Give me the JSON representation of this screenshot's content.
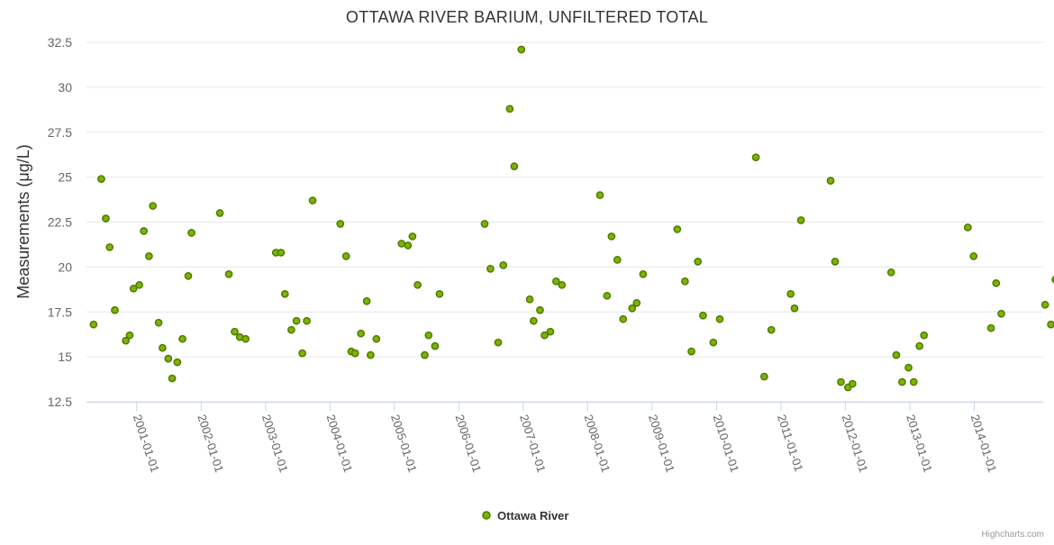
{
  "colors": {
    "point_fill": "#7cb500",
    "point_stroke": "#4f7a00",
    "grid": "#e6e6e6",
    "axis_text": "#666666"
  },
  "credits": "Highcharts.com",
  "chart_data": {
    "type": "scatter",
    "title": "OTTAWA RIVER BARIUM, UNFILTERED TOTAL",
    "ylabel": "Measurements (μg/L)",
    "xlabel": "",
    "ylim": [
      12.5,
      32.5
    ],
    "yticks": [
      12.5,
      15,
      17.5,
      20,
      22.5,
      25,
      27.5,
      30,
      32.5
    ],
    "xlim": [
      2000.22,
      2015.07
    ],
    "x_tick_values": [
      2001,
      2002,
      2003,
      2004,
      2005,
      2006,
      2007,
      2008,
      2009,
      2010,
      2011,
      2012,
      2013,
      2014
    ],
    "x_tick_labels": [
      "2001-01-01",
      "2002-01-01",
      "2003-01-01",
      "2004-01-01",
      "2005-01-01",
      "2006-01-01",
      "2007-01-01",
      "2008-01-01",
      "2009-01-01",
      "2010-01-01",
      "2011-01-01",
      "2012-01-01",
      "2013-01-01",
      "2014-01-01"
    ],
    "legend": "bottom-center",
    "series": [
      {
        "name": "Ottawa River",
        "points": [
          [
            2000.33,
            16.8
          ],
          [
            2000.45,
            24.9
          ],
          [
            2000.52,
            22.7
          ],
          [
            2000.58,
            21.1
          ],
          [
            2000.66,
            17.6
          ],
          [
            2000.83,
            15.9
          ],
          [
            2000.89,
            16.2
          ],
          [
            2000.95,
            18.8
          ],
          [
            2001.04,
            19.0
          ],
          [
            2001.11,
            22.0
          ],
          [
            2001.19,
            20.6
          ],
          [
            2001.25,
            23.4
          ],
          [
            2001.34,
            16.9
          ],
          [
            2001.4,
            15.5
          ],
          [
            2001.49,
            14.9
          ],
          [
            2001.55,
            13.8
          ],
          [
            2001.63,
            14.7
          ],
          [
            2001.71,
            16.0
          ],
          [
            2001.8,
            19.5
          ],
          [
            2001.85,
            21.9
          ],
          [
            2002.29,
            23.0
          ],
          [
            2002.43,
            19.6
          ],
          [
            2002.52,
            16.4
          ],
          [
            2002.6,
            16.1
          ],
          [
            2002.69,
            16.0
          ],
          [
            2003.16,
            20.8
          ],
          [
            2003.24,
            20.8
          ],
          [
            2003.3,
            18.5
          ],
          [
            2003.4,
            16.5
          ],
          [
            2003.48,
            17.0
          ],
          [
            2003.57,
            15.2
          ],
          [
            2003.64,
            17.0
          ],
          [
            2003.73,
            23.7
          ],
          [
            2004.16,
            22.4
          ],
          [
            2004.25,
            20.6
          ],
          [
            2004.33,
            15.3
          ],
          [
            2004.39,
            15.2
          ],
          [
            2004.48,
            16.3
          ],
          [
            2004.57,
            18.1
          ],
          [
            2004.63,
            15.1
          ],
          [
            2004.72,
            16.0
          ],
          [
            2005.11,
            21.3
          ],
          [
            2005.21,
            21.2
          ],
          [
            2005.28,
            21.7
          ],
          [
            2005.36,
            19.0
          ],
          [
            2005.47,
            15.1
          ],
          [
            2005.53,
            16.2
          ],
          [
            2005.63,
            15.6
          ],
          [
            2005.7,
            18.5
          ],
          [
            2006.4,
            22.4
          ],
          [
            2006.49,
            19.9
          ],
          [
            2006.61,
            15.8
          ],
          [
            2006.69,
            20.1
          ],
          [
            2006.79,
            28.8
          ],
          [
            2006.86,
            25.6
          ],
          [
            2006.97,
            32.1
          ],
          [
            2007.1,
            18.2
          ],
          [
            2007.16,
            17.0
          ],
          [
            2007.26,
            17.6
          ],
          [
            2007.33,
            16.2
          ],
          [
            2007.42,
            16.4
          ],
          [
            2007.51,
            19.2
          ],
          [
            2007.6,
            19.0
          ],
          [
            2008.19,
            24.0
          ],
          [
            2008.3,
            18.4
          ],
          [
            2008.37,
            21.7
          ],
          [
            2008.46,
            20.4
          ],
          [
            2008.55,
            17.1
          ],
          [
            2008.69,
            17.7
          ],
          [
            2008.76,
            18.0
          ],
          [
            2008.86,
            19.6
          ],
          [
            2009.39,
            22.1
          ],
          [
            2009.51,
            19.2
          ],
          [
            2009.61,
            15.3
          ],
          [
            2009.71,
            20.3
          ],
          [
            2009.79,
            17.3
          ],
          [
            2009.95,
            15.8
          ],
          [
            2010.05,
            17.1
          ],
          [
            2010.61,
            26.1
          ],
          [
            2010.74,
            13.9
          ],
          [
            2010.85,
            16.5
          ],
          [
            2011.15,
            18.5
          ],
          [
            2011.21,
            17.7
          ],
          [
            2011.31,
            22.6
          ],
          [
            2011.77,
            24.8
          ],
          [
            2011.84,
            20.3
          ],
          [
            2011.93,
            13.6
          ],
          [
            2012.04,
            13.3
          ],
          [
            2012.11,
            13.5
          ],
          [
            2012.71,
            19.7
          ],
          [
            2012.79,
            15.1
          ],
          [
            2012.88,
            13.6
          ],
          [
            2012.98,
            14.4
          ],
          [
            2013.06,
            13.6
          ],
          [
            2013.15,
            15.6
          ],
          [
            2013.22,
            16.2
          ],
          [
            2013.9,
            22.2
          ],
          [
            2013.99,
            20.6
          ],
          [
            2014.26,
            16.6
          ],
          [
            2014.34,
            19.1
          ],
          [
            2014.42,
            17.4
          ],
          [
            2015.1,
            17.9
          ],
          [
            2015.19,
            16.8
          ],
          [
            2015.26,
            19.3
          ]
        ]
      }
    ]
  }
}
